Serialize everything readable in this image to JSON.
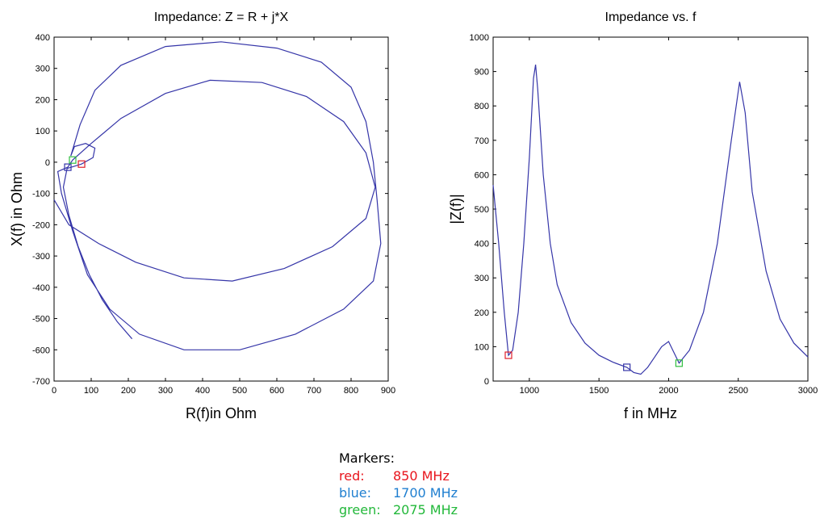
{
  "chart_data": [
    {
      "type": "line",
      "title": "Impedance: Z = R + j*X",
      "x_label": "R(f)in Ohm",
      "y_label": "X(f) in Ohm",
      "xlim": [
        0,
        900
      ],
      "xticks": [
        0,
        100,
        200,
        300,
        400,
        500,
        600,
        700,
        800,
        900
      ],
      "ylim": [
        -700,
        400
      ],
      "yticks": [
        -700,
        -600,
        -500,
        -400,
        -300,
        -200,
        -100,
        0,
        100,
        200,
        300,
        400
      ],
      "grid": false,
      "series": [
        {
          "color": "#3535a8",
          "x": [
            210,
            170,
            130,
            95,
            65,
            40,
            25,
            35,
            74,
            105,
            110,
            85,
            55,
            45,
            60,
            70,
            110,
            180,
            300,
            450,
            600,
            720,
            800,
            840,
            860,
            870,
            880,
            860,
            780,
            650,
            500,
            350,
            230,
            150,
            90,
            50,
            20,
            10,
            37,
            50,
            100,
            180,
            300,
            420,
            560,
            680,
            780,
            840,
            865,
            840,
            750,
            620,
            480,
            350,
            220,
            120,
            40,
            0
          ],
          "values": [
            -565,
            -510,
            -440,
            -360,
            -270,
            -170,
            -80,
            -20,
            -6,
            15,
            45,
            60,
            50,
            20,
            80,
            120,
            230,
            310,
            370,
            385,
            365,
            320,
            240,
            130,
            0,
            -120,
            -260,
            -380,
            -470,
            -550,
            -600,
            -600,
            -550,
            -470,
            -360,
            -220,
            -100,
            -30,
            -16,
            7,
            60,
            140,
            220,
            262,
            255,
            210,
            130,
            30,
            -80,
            -180,
            -270,
            -340,
            -380,
            -370,
            -320,
            -260,
            -200,
            -120
          ]
        }
      ],
      "markers": [
        {
          "x": 74,
          "y": -6,
          "color": "#e0202a"
        },
        {
          "x": 37,
          "y": -16,
          "color": "#3535a8"
        },
        {
          "x": 50,
          "y": 7,
          "color": "#2fbf3f"
        }
      ]
    },
    {
      "type": "line",
      "title": "Impedance vs. f",
      "x_label": "f in MHz",
      "y_label": "|Z(f)|",
      "xlim": [
        740,
        3000
      ],
      "xticks": [
        1000,
        1500,
        2000,
        2500,
        3000
      ],
      "ylim": [
        0,
        1000
      ],
      "yticks": [
        0,
        100,
        200,
        300,
        400,
        500,
        600,
        700,
        800,
        900,
        1000
      ],
      "grid": false,
      "series": [
        {
          "color": "#3535a8",
          "x": [
            740,
            780,
            820,
            850,
            880,
            920,
            960,
            1000,
            1030,
            1045,
            1060,
            1100,
            1150,
            1200,
            1300,
            1400,
            1500,
            1600,
            1700,
            1750,
            1800,
            1850,
            1900,
            1950,
            2000,
            2030,
            2075,
            2150,
            2250,
            2350,
            2450,
            2510,
            2550,
            2600,
            2700,
            2800,
            2900,
            3000
          ],
          "values": [
            570,
            400,
            200,
            75,
            90,
            200,
            400,
            650,
            880,
            920,
            850,
            600,
            400,
            280,
            170,
            110,
            75,
            55,
            40,
            25,
            20,
            40,
            70,
            100,
            115,
            90,
            52,
            90,
            200,
            400,
            700,
            870,
            780,
            550,
            320,
            180,
            110,
            70
          ]
        }
      ],
      "markers": [
        {
          "x": 850,
          "y": 75,
          "color": "#e0202a"
        },
        {
          "x": 1700,
          "y": 40,
          "color": "#3535a8"
        },
        {
          "x": 2075,
          "y": 52,
          "color": "#2fbf3f"
        }
      ]
    }
  ],
  "markers_note": {
    "title": "Markers:",
    "rows": [
      {
        "label": "red:",
        "value": "850 MHz",
        "color": "#e8141c"
      },
      {
        "label": "blue:",
        "value": "1700 MHz",
        "color": "#1f7fd0"
      },
      {
        "label": "green:",
        "value": "2075 MHz",
        "color": "#22b83a"
      }
    ]
  }
}
